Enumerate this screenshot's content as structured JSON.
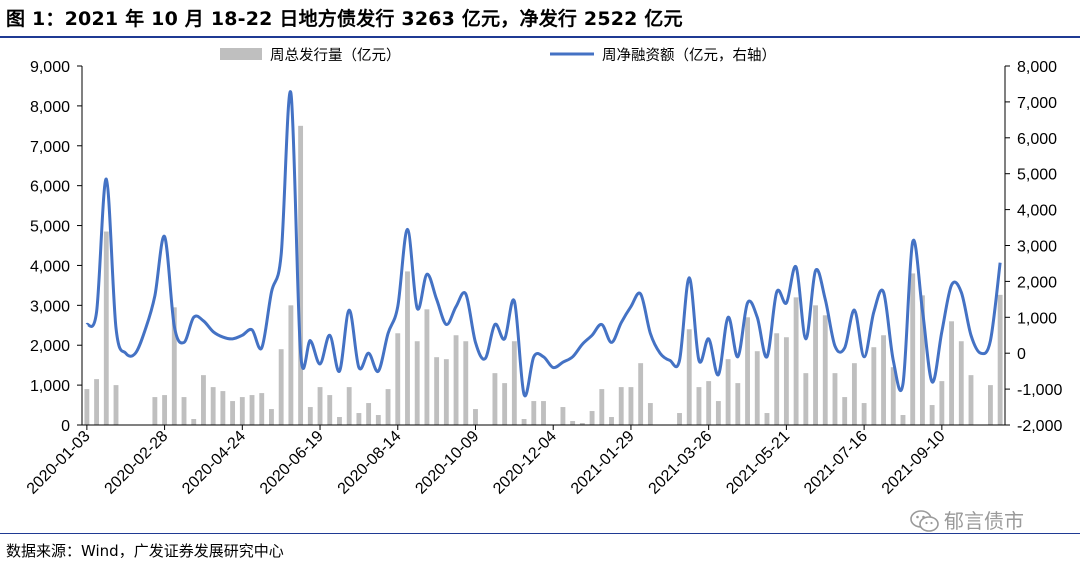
{
  "figure": {
    "title": "图 1：2021 年 10 月 18-22 日地方债发行 3263 亿元，净发行 2522 亿元",
    "source": "数据来源：Wind，广发证券发展研究中心",
    "watermark": "郁言债市"
  },
  "chart_data": {
    "type": "bar+line",
    "legend_placement": "top",
    "grid": false,
    "categories": [
      "2020-01-03",
      "2020-01-10",
      "2020-01-17",
      "2020-01-24",
      "2020-01-31",
      "2020-02-07",
      "2020-02-14",
      "2020-02-21",
      "2020-02-28",
      "2020-03-06",
      "2020-03-13",
      "2020-03-20",
      "2020-03-27",
      "2020-04-03",
      "2020-04-10",
      "2020-04-17",
      "2020-04-24",
      "2020-05-01",
      "2020-05-08",
      "2020-05-15",
      "2020-05-22",
      "2020-05-29",
      "2020-06-05",
      "2020-06-12",
      "2020-06-19",
      "2020-06-26",
      "2020-07-03",
      "2020-07-10",
      "2020-07-17",
      "2020-07-24",
      "2020-07-31",
      "2020-08-07",
      "2020-08-14",
      "2020-08-21",
      "2020-08-28",
      "2020-09-04",
      "2020-09-11",
      "2020-09-18",
      "2020-09-25",
      "2020-10-02",
      "2020-10-09",
      "2020-10-16",
      "2020-10-23",
      "2020-10-30",
      "2020-11-06",
      "2020-11-13",
      "2020-11-20",
      "2020-11-27",
      "2020-12-04",
      "2020-12-11",
      "2020-12-18",
      "2020-12-25",
      "2021-01-01",
      "2021-01-08",
      "2021-01-15",
      "2021-01-22",
      "2021-01-29",
      "2021-02-05",
      "2021-02-12",
      "2021-02-19",
      "2021-02-26",
      "2021-03-05",
      "2021-03-12",
      "2021-03-19",
      "2021-03-26",
      "2021-04-02",
      "2021-04-09",
      "2021-04-16",
      "2021-04-23",
      "2021-04-30",
      "2021-05-07",
      "2021-05-14",
      "2021-05-21",
      "2021-05-28",
      "2021-06-04",
      "2021-06-11",
      "2021-06-18",
      "2021-06-25",
      "2021-07-02",
      "2021-07-09",
      "2021-07-16",
      "2021-07-23",
      "2021-07-30",
      "2021-08-06",
      "2021-08-13",
      "2021-08-20",
      "2021-08-27",
      "2021-09-03",
      "2021-09-10",
      "2021-09-17",
      "2021-09-24",
      "2021-10-01",
      "2021-10-08",
      "2021-10-15",
      "2021-10-22"
    ],
    "x_tick_labels": [
      "2020-01-03",
      "2020-02-28",
      "2020-04-24",
      "2020-06-19",
      "2020-08-14",
      "2020-10-09",
      "2020-12-04",
      "2021-01-29",
      "2021-03-26",
      "2021-05-21",
      "2021-07-16",
      "2021-09-10"
    ],
    "series": [
      {
        "name": "周总发行量（亿元）",
        "type": "bar",
        "axis": "left",
        "color": "#bfbfbf",
        "values": [
          900,
          1150,
          4850,
          1000,
          0,
          0,
          0,
          700,
          750,
          2950,
          700,
          150,
          1250,
          950,
          850,
          600,
          700,
          750,
          800,
          400,
          1900,
          3000,
          7500,
          450,
          950,
          750,
          200,
          950,
          300,
          550,
          250,
          900,
          2300,
          3850,
          2100,
          2900,
          1700,
          1650,
          2250,
          2100,
          400,
          0,
          1300,
          1050,
          2100,
          150,
          600,
          600,
          0,
          450,
          100,
          50,
          350,
          900,
          200,
          950,
          950,
          1550,
          550,
          0,
          0,
          300,
          2400,
          950,
          1100,
          600,
          1650,
          1050,
          2700,
          1850,
          300,
          2300,
          2200,
          3200,
          1300,
          3000,
          2750,
          1300,
          700,
          1550,
          550,
          1950,
          2250,
          1450,
          250,
          3800,
          3250,
          500,
          1100,
          2600,
          2100,
          1250,
          0,
          1000,
          3263
        ]
      },
      {
        "name": "周净融资额（亿元，右轴）",
        "type": "line",
        "axis": "right",
        "color": "#4472c4",
        "values": [
          800,
          1150,
          4850,
          700,
          0,
          0,
          650,
          1600,
          3250,
          750,
          300,
          1000,
          900,
          600,
          450,
          400,
          500,
          650,
          150,
          1700,
          2750,
          7250,
          0,
          350,
          -300,
          500,
          -500,
          1200,
          -400,
          0,
          -500,
          550,
          1300,
          3450,
          1250,
          2200,
          1500,
          800,
          1300,
          1650,
          300,
          -150,
          800,
          400,
          1450,
          -1150,
          -100,
          -100,
          -400,
          -250,
          -100,
          250,
          500,
          800,
          300,
          850,
          1300,
          1650,
          550,
          0,
          -200,
          -200,
          2100,
          -200,
          400,
          -600,
          1000,
          -100,
          1400,
          1000,
          -100,
          1700,
          1400,
          2400,
          400,
          2300,
          1500,
          200,
          150,
          1200,
          -100,
          1150,
          1700,
          -200,
          -850,
          3100,
          1200,
          -800,
          600,
          1900,
          1700,
          500,
          0,
          350,
          2522
        ]
      }
    ],
    "y_left": {
      "min": 0,
      "max": 9000,
      "step": 1000
    },
    "y_right": {
      "min": -2000,
      "max": 8000,
      "step": 1000
    }
  }
}
